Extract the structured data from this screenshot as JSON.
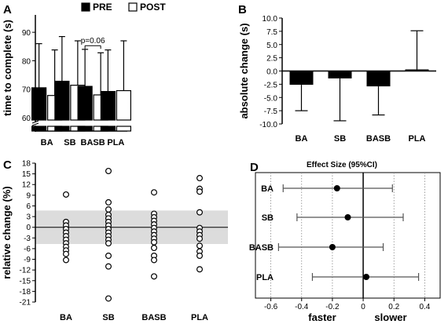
{
  "chart_data": [
    {
      "panel": "A",
      "type": "bar",
      "ylabel": "time to complete (s)",
      "ylim": [
        60,
        95
      ],
      "yticks": [
        60,
        70,
        80,
        90
      ],
      "y_axis_break": true,
      "categories": [
        "BA",
        "SB",
        "BASB",
        "PLA"
      ],
      "series": [
        {
          "name": "PRE",
          "color": "#000000",
          "values": [
            70.5,
            72.8,
            71.0,
            69.2
          ],
          "error_upper": [
            86.0,
            88.5,
            84.0,
            83.8
          ]
        },
        {
          "name": "POST",
          "color": "#ffffff",
          "values": [
            67.8,
            71.4,
            68.0,
            69.5
          ],
          "error_upper": [
            83.8,
            87.0,
            82.8,
            87.0
          ]
        }
      ],
      "annotations": [
        {
          "text": "p=0.06",
          "category": "BASB"
        }
      ],
      "legend": "top"
    },
    {
      "panel": "B",
      "type": "bar",
      "ylabel": "absolute change (s)",
      "ylim": [
        -10,
        10
      ],
      "yticks": [
        -10.0,
        -7.5,
        -5.0,
        -2.5,
        0.0,
        2.5,
        5.0,
        7.5,
        10.0
      ],
      "categories": [
        "BA",
        "SB",
        "BASB",
        "PLA"
      ],
      "values": [
        -2.6,
        -1.4,
        -2.9,
        0.3
      ],
      "error_ends": [
        -7.5,
        -9.4,
        -8.3,
        7.6
      ],
      "color": "#000000"
    },
    {
      "panel": "C",
      "type": "scatter",
      "ylabel": "relative change (%)",
      "ylim": [
        -21,
        18
      ],
      "yticks": [
        -21,
        -18,
        -15,
        -12,
        -9,
        -6,
        -3,
        0,
        3,
        6,
        9,
        12,
        15,
        18
      ],
      "reference_band": [
        -4.7,
        4.7
      ],
      "categories": [
        "BA",
        "SB",
        "BASB",
        "PLA"
      ],
      "points": [
        [
          9.2,
          1.5,
          0.5,
          -0.5,
          -1.5,
          -2.5,
          -3.5,
          -4.5,
          -5.5,
          -6.5,
          -7.5,
          -9.2
        ],
        [
          15.8,
          7.0,
          5.0,
          3.5,
          2.5,
          1.5,
          0.5,
          -0.5,
          -1.5,
          -2.5,
          -3.5,
          -4.5,
          -8.0,
          -11.0,
          -20.0
        ],
        [
          9.8,
          3.8,
          2.8,
          1.8,
          0.8,
          -0.2,
          -1.2,
          -2.2,
          -3.2,
          -4.2,
          -5.8,
          -8.0,
          -9.2,
          -13.8
        ],
        [
          13.8,
          10.8,
          10.0,
          4.2,
          -0.2,
          -1.2,
          -2.2,
          -3.2,
          -5.2,
          -6.8,
          -8.0,
          -11.8
        ]
      ]
    },
    {
      "panel": "D",
      "type": "forest",
      "title": "Effect Size (95%CI)",
      "xlim": [
        -0.7,
        0.5
      ],
      "xticks": [
        -0.6,
        -0.4,
        -0.2,
        0,
        0.2,
        0.4
      ],
      "tick_labels": [
        "-0.6",
        "-0.4",
        "-0.2",
        "0",
        "0.2",
        "0.4"
      ],
      "gridlines_x": [
        -0.6,
        -0.4,
        -0.2,
        0.2,
        0.4
      ],
      "categories": [
        "BA",
        "SB",
        "BASB",
        "PLA"
      ],
      "estimates": [
        -0.17,
        -0.1,
        -0.2,
        0.02
      ],
      "ci_low": [
        -0.52,
        -0.43,
        -0.55,
        -0.33
      ],
      "ci_high": [
        0.19,
        0.26,
        0.13,
        0.36
      ],
      "xlabel_left": "faster",
      "xlabel_right": "slower"
    }
  ]
}
